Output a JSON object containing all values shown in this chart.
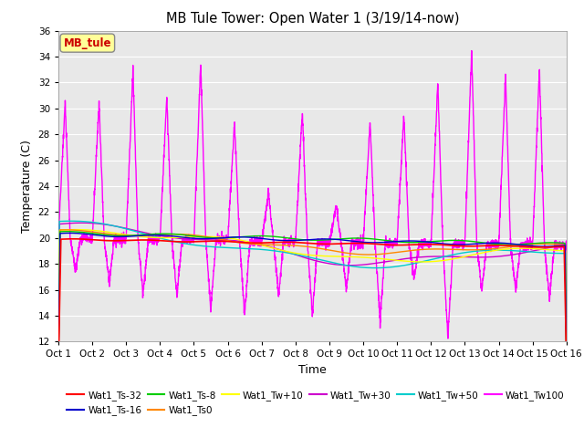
{
  "title": "MB Tule Tower: Open Water 1 (3/19/14-now)",
  "xlabel": "Time",
  "ylabel": "Temperature (C)",
  "ylim": [
    12,
    36
  ],
  "yticks": [
    12,
    14,
    16,
    18,
    20,
    22,
    24,
    26,
    28,
    30,
    32,
    34,
    36
  ],
  "bg_color": "#e8e8e8",
  "series_colors": {
    "Wat1_Ts-32": "#ff0000",
    "Wat1_Ts-16": "#0000cc",
    "Wat1_Ts-8": "#00cc00",
    "Wat1_Ts0": "#ff8800",
    "Wat1_Tw+10": "#ffff00",
    "Wat1_Tw+30": "#cc00cc",
    "Wat1_Tw+50": "#00cccc",
    "Wat1_Tw100": "#ff00ff"
  },
  "annotation_box": "MB_tule",
  "annotation_color": "#cc0000",
  "annotation_bg": "#ffff99"
}
